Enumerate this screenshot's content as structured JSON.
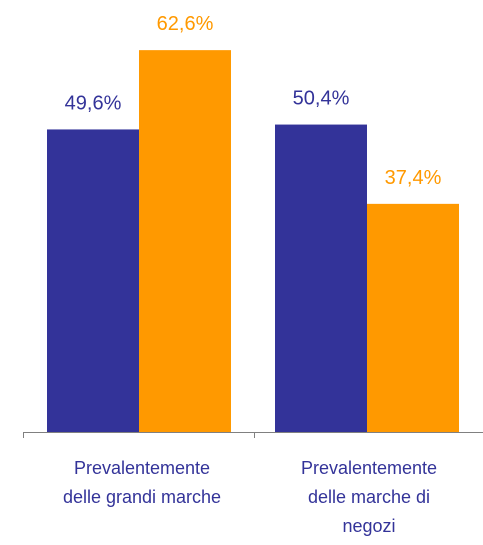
{
  "chart_data": {
    "type": "bar",
    "categories": [
      [
        "Prevalentemente",
        "delle grandi marche"
      ],
      [
        "Prevalentemente",
        "delle marche di",
        "negozi"
      ]
    ],
    "series": [
      {
        "values": [
          49.6,
          50.4
        ],
        "labels": [
          "49,6%",
          "50,4%"
        ],
        "color": "#333399"
      },
      {
        "values": [
          62.6,
          37.4
        ],
        "labels": [
          "62,6%",
          "37,4%"
        ],
        "color": "#FF9900"
      }
    ],
    "ylim": [
      0,
      100
    ],
    "grid": false,
    "legend": "none",
    "title": "",
    "xlabel": "",
    "ylabel": ""
  },
  "colors": {
    "axis": "#808080",
    "tick_text": "#333399"
  }
}
